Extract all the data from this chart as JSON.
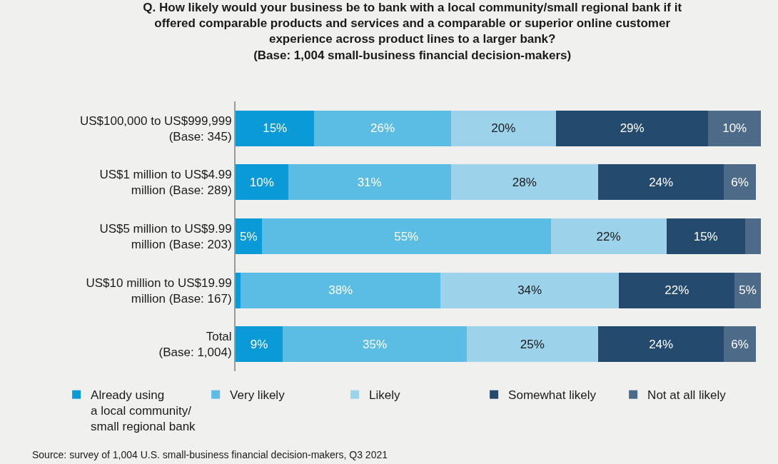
{
  "chart_data": {
    "type": "bar",
    "orientation": "horizontal",
    "stacked": true,
    "title": "Q. How likely would your business be to bank with a local community/small regional bank if it\noffered comparable products and services and a comparable or superior online customer\nexperience across product lines to a larger bank?\n(Base: 1,004 small-business financial decision-makers)",
    "categories": [
      "US$100,000 to US$999,999\n(Base: 345)",
      "US$1 million to US$4.99\nmillion (Base: 289)",
      "US$5 million to US$9.99\nmillion (Base: 203)",
      "US$10 million to US$19.99\nmillion (Base: 167)",
      "Total\n(Base: 1,004)"
    ],
    "xlim": [
      0,
      100
    ],
    "series": [
      {
        "name": "Already using\na local community/\nsmall regional bank",
        "color": "#0a9ad7",
        "values": [
          15,
          10,
          5,
          1,
          9
        ],
        "value_labels": [
          "15%",
          "10%",
          "5%",
          null,
          "9%"
        ]
      },
      {
        "name": "Very likely",
        "color": "#5bbce4",
        "values": [
          26,
          31,
          55,
          38,
          35
        ],
        "value_labels": [
          "26%",
          "31%",
          "55%",
          "38%",
          "35%"
        ]
      },
      {
        "name": "Likely",
        "color": "#9dd3ea",
        "values": [
          20,
          28,
          22,
          34,
          25
        ],
        "value_labels": [
          "20%",
          "28%",
          "22%",
          "34%",
          "25%"
        ]
      },
      {
        "name": "Somewhat likely",
        "color": "#244a6e",
        "values": [
          29,
          24,
          15,
          22,
          24
        ],
        "value_labels": [
          "29%",
          "24%",
          "15%",
          "22%",
          "24%"
        ]
      },
      {
        "name": "Not at all likely",
        "color": "#4d6a88",
        "values": [
          10,
          6,
          3,
          5,
          6
        ],
        "value_labels": [
          "10%",
          "6%",
          null,
          "5%",
          "6%"
        ]
      }
    ],
    "legend": "bottom",
    "grid": false,
    "annotations": [
      "Source: survey of 1,004 U.S. small-business financial decision-makers, Q3 2021"
    ]
  }
}
